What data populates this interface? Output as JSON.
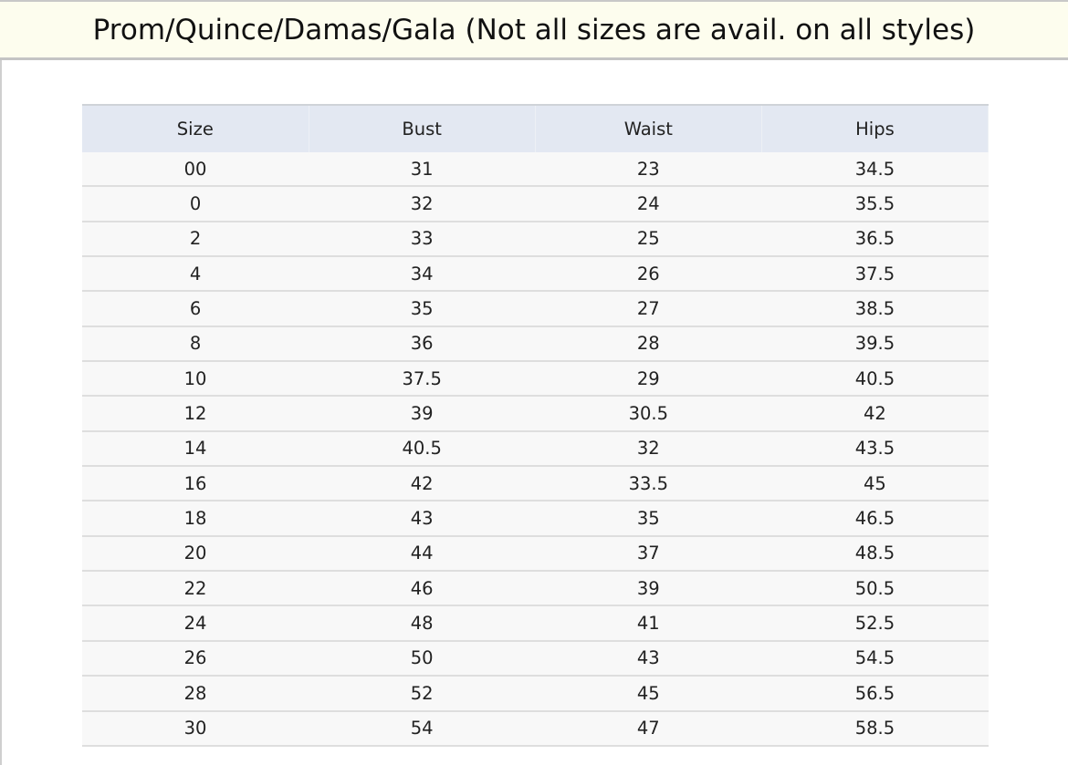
{
  "title": "Prom/Quince/Damas/Gala (Not all sizes are avail. on all styles)",
  "table": {
    "headers": [
      "Size",
      "Bust",
      "Waist",
      "Hips"
    ],
    "rows": [
      [
        "00",
        "31",
        "23",
        "34.5"
      ],
      [
        "0",
        "32",
        "24",
        "35.5"
      ],
      [
        "2",
        "33",
        "25",
        "36.5"
      ],
      [
        "4",
        "34",
        "26",
        "37.5"
      ],
      [
        "6",
        "35",
        "27",
        "38.5"
      ],
      [
        "8",
        "36",
        "28",
        "39.5"
      ],
      [
        "10",
        "37.5",
        "29",
        "40.5"
      ],
      [
        "12",
        "39",
        "30.5",
        "42"
      ],
      [
        "14",
        "40.5",
        "32",
        "43.5"
      ],
      [
        "16",
        "42",
        "33.5",
        "45"
      ],
      [
        "18",
        "43",
        "35",
        "46.5"
      ],
      [
        "20",
        "44",
        "37",
        "48.5"
      ],
      [
        "22",
        "46",
        "39",
        "50.5"
      ],
      [
        "24",
        "48",
        "41",
        "52.5"
      ],
      [
        "26",
        "50",
        "43",
        "54.5"
      ],
      [
        "28",
        "52",
        "45",
        "56.5"
      ],
      [
        "30",
        "54",
        "47",
        "58.5"
      ]
    ]
  },
  "colors": {
    "title_bg": "#fdfdee",
    "header_bg": "#e3e8f2",
    "row_bg": "#f8f8f8"
  }
}
